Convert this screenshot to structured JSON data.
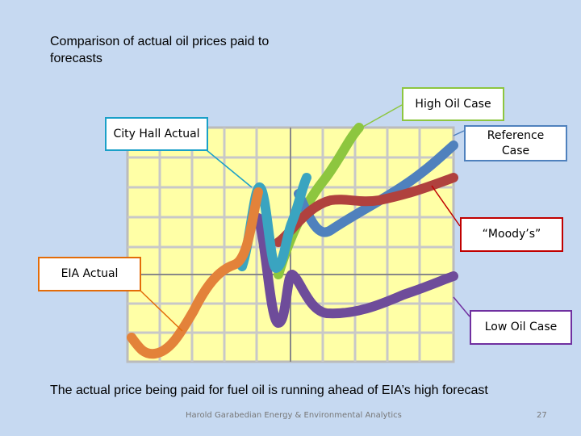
{
  "header": {
    "title": "Comparison of actual oil prices paid to forecasts"
  },
  "callouts": {
    "city_hall": "City Hall Actual",
    "high_oil": "High Oil Case",
    "reference": "Reference Case",
    "moodys": "“Moody’s”",
    "low_oil": "Low Oil Case",
    "eia": "EIA Actual"
  },
  "caption": "The actual price being paid for fuel oil is running ahead of EIA’s high forecast",
  "footer": {
    "credit": "Harold Garabedian Energy & Environmental Analytics",
    "page": "27"
  }
}
